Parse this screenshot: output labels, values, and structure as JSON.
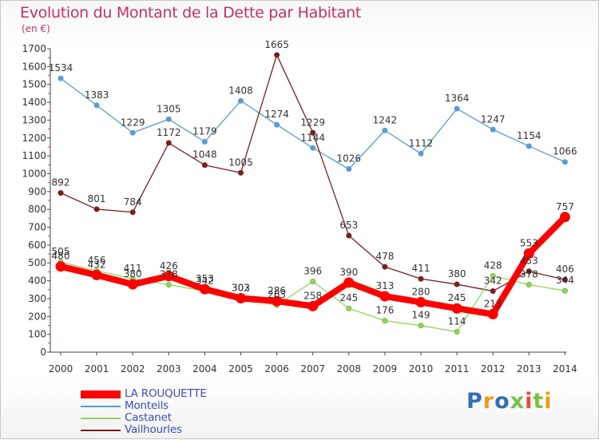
{
  "title": "Evolution du Montant de la Dette par Habitant",
  "subtitle": "(en €)",
  "brand": "Proxiti",
  "chart_data": {
    "type": "line",
    "x": [
      "2000",
      "2001",
      "2002",
      "2003",
      "2004",
      "2005",
      "2006",
      "2007",
      "2008",
      "2009",
      "2010",
      "2011",
      "2012",
      "2013",
      "2014"
    ],
    "ylim": [
      0,
      1700
    ],
    "yticks": [
      0,
      100,
      200,
      300,
      400,
      500,
      600,
      700,
      800,
      900,
      1000,
      1100,
      1200,
      1300,
      1400,
      1500,
      1600,
      1700
    ],
    "grid": false,
    "legend_position": "bottom-left",
    "series": [
      {
        "name": "Monteils",
        "color": "#5b9bd5",
        "values": [
          1534,
          1383,
          1229,
          1305,
          1179,
          1408,
          1274,
          1144,
          1026,
          1242,
          1112,
          1364,
          1247,
          1154,
          1066
        ]
      },
      {
        "name": "Vailhourles",
        "color": "#7a1f1f",
        "values": [
          892,
          801,
          784,
          1172,
          1048,
          1005,
          1665,
          1229,
          653,
          478,
          411,
          380,
          342,
          453,
          406
        ]
      },
      {
        "name": "Castanet",
        "color": "#8fd65a",
        "values": [
          505,
          456,
          411,
          378,
          342,
          303,
          263,
          396,
          245,
          176,
          149,
          114,
          428,
          378,
          344
        ]
      },
      {
        "name": "LA ROUQUETTE",
        "color": "#ff0000",
        "values": [
          480,
          432,
          380,
          426,
          353,
          302,
          286,
          258,
          390,
          313,
          280,
          245,
          213,
          553,
          757
        ]
      }
    ]
  }
}
